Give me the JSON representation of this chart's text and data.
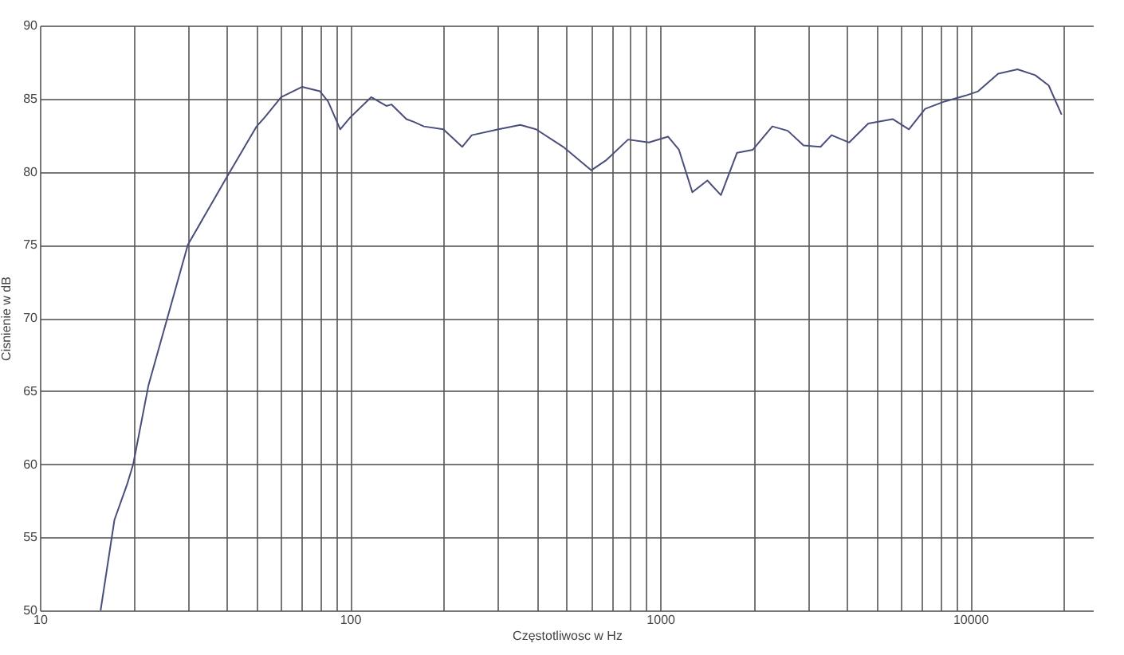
{
  "chart_data": {
    "type": "line",
    "xlabel": "Częstotliwosc w Hz",
    "ylabel": "Cisnienie w dB",
    "log": "x",
    "grid": true,
    "marker": "none",
    "line_style": "solid",
    "xlim": [
      10,
      25000
    ],
    "ylim": [
      50,
      90
    ],
    "xticks": [
      10,
      {
        "value": 20,
        "label": null
      },
      {
        "value": 30,
        "label": null
      },
      {
        "value": 40,
        "label": null
      },
      {
        "value": 50,
        "label": null
      },
      {
        "value": 60,
        "label": null
      },
      {
        "value": 70,
        "label": null
      },
      {
        "value": 80,
        "label": null
      },
      {
        "value": 90,
        "label": null
      },
      100,
      {
        "value": 200,
        "label": null
      },
      {
        "value": 300,
        "label": null
      },
      {
        "value": 400,
        "label": null
      },
      {
        "value": 500,
        "label": null
      },
      {
        "value": 600,
        "label": null
      },
      {
        "value": 700,
        "label": null
      },
      {
        "value": 800,
        "label": null
      },
      {
        "value": 900,
        "label": null
      },
      1000,
      {
        "value": 2000,
        "label": null
      },
      {
        "value": 3000,
        "label": null
      },
      {
        "value": 4000,
        "label": null
      },
      {
        "value": 5000,
        "label": null
      },
      {
        "value": 6000,
        "label": null
      },
      {
        "value": 7000,
        "label": null
      },
      {
        "value": 8000,
        "label": null
      },
      {
        "value": 9000,
        "label": null
      },
      10000,
      {
        "value": 20000,
        "label": null
      }
    ],
    "yticks": [
      50,
      55,
      60,
      65,
      70,
      75,
      80,
      85,
      90
    ],
    "x": [
      15.7,
      17.4,
      19.1,
      20,
      22.4,
      25.7,
      30,
      40,
      50,
      53,
      60,
      70,
      80,
      85,
      93,
      100,
      117,
      131,
      136,
      152,
      161,
      173,
      200,
      230,
      247,
      301,
      354,
      398,
      487,
      600,
      671,
      788,
      920,
      1060,
      1150,
      1270,
      1420,
      1570,
      1770,
      1990,
      2300,
      2580,
      2900,
      3290,
      3570,
      4070,
      4690,
      5620,
      6340,
      7150,
      8250,
      9630,
      10600,
      12300,
      14200,
      16200,
      17900,
      19700
    ],
    "series": [
      {
        "color": "#4a4e7a",
        "values": [
          50,
          56.2,
          58.6,
          60,
          65.4,
          69.9,
          75,
          79.6,
          83.1,
          83.7,
          85.1,
          85.8,
          85.5,
          84.8,
          82.9,
          83.7,
          85.1,
          84.5,
          84.6,
          83.6,
          83.4,
          83.1,
          82.9,
          81.7,
          82.5,
          82.9,
          83.2,
          82.9,
          81.7,
          80.1,
          80.8,
          82.2,
          82,
          82.4,
          81.5,
          78.6,
          79.4,
          78.4,
          81.3,
          81.5,
          83.1,
          82.8,
          81.8,
          81.7,
          82.5,
          82,
          83.3,
          83.6,
          82.9,
          84.3,
          84.8,
          85.2,
          85.5,
          86.7,
          87,
          86.6,
          85.9,
          83.9
        ]
      }
    ]
  }
}
